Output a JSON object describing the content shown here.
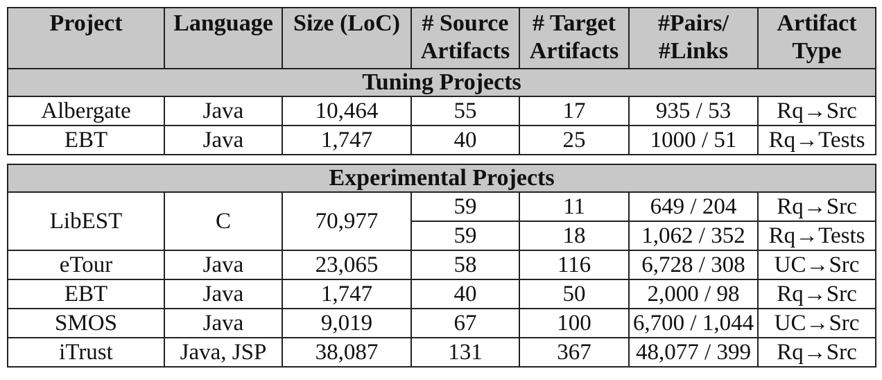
{
  "headers": {
    "project": "Project",
    "language": "Language",
    "size": "Size (LoC)",
    "source_1": "# Source",
    "source_2": "Artifacts",
    "target_1": "# Target",
    "target_2": "Artifacts",
    "pairs_1": "#Pairs/",
    "pairs_2": "#Links",
    "type_1": "Artifact",
    "type_2": "Type"
  },
  "tuning": {
    "title": "Tuning Projects",
    "rows": [
      {
        "project": "Albergate",
        "language": "Java",
        "size": "10,464",
        "source": "55",
        "target": "17",
        "pairs": "935 / 53",
        "type": "Rq→Src"
      },
      {
        "project": "EBT",
        "language": "Java",
        "size": "1,747",
        "source": "40",
        "target": "25",
        "pairs": "1000 / 51",
        "type": "Rq→Tests"
      }
    ]
  },
  "experimental": {
    "title": "Experimental Projects",
    "libest": {
      "project": "LibEST",
      "language": "C",
      "size": "70,977",
      "sub": [
        {
          "source": "59",
          "target": "11",
          "pairs": "649 / 204",
          "type": "Rq→Src"
        },
        {
          "source": "59",
          "target": "18",
          "pairs": "1,062 / 352",
          "type": "Rq→Tests"
        }
      ]
    },
    "rows": [
      {
        "project": "eTour",
        "language": "Java",
        "size": "23,065",
        "source": "58",
        "target": "116",
        "pairs": "6,728 / 308",
        "type": "UC→Src"
      },
      {
        "project": "EBT",
        "language": "Java",
        "size": "1,747",
        "source": "40",
        "target": "50",
        "pairs": "2,000 / 98",
        "type": "Rq→Src"
      },
      {
        "project": "SMOS",
        "language": "Java",
        "size": "9,019",
        "source": "67",
        "target": "100",
        "pairs": "6,700 / 1,044",
        "type": "UC→Src"
      },
      {
        "project": "iTrust",
        "language": "Java, JSP",
        "size": "38,087",
        "source": "131",
        "target": "367",
        "pairs": "48,077 / 399",
        "type": "Rq→Src"
      }
    ]
  }
}
